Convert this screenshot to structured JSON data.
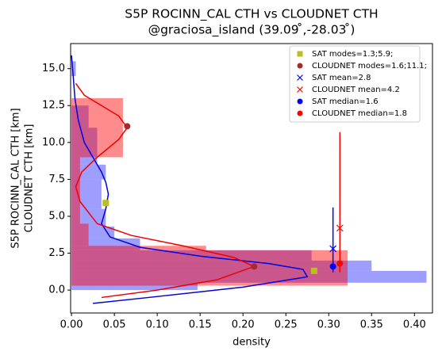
{
  "chart_data": {
    "type": "histogram",
    "title": "S5P ROCINN_CAL CTH vs CLOUDNET CTH",
    "subtitle": "@graciosa_island (39.09 ̊,-28.03 ̊)",
    "ylabel": [
      "S5P ROCINN_CAL CTH [km]",
      "CLOUDNET CTH [km]"
    ],
    "xlabel": "density",
    "xlim": [
      -0.001,
      0.421
    ],
    "ylim": [
      -1.55,
      16.7
    ],
    "xticks": [
      {
        "value": 0,
        "label": "0.00"
      },
      {
        "value": 0.05,
        "label": "0.05"
      },
      {
        "value": 0.1,
        "label": "0.10"
      },
      {
        "value": 0.15,
        "label": "0.15"
      },
      {
        "value": 0.2,
        "label": "0.20"
      },
      {
        "value": 0.25,
        "label": "0.25"
      },
      {
        "value": 0.3,
        "label": "0.30"
      },
      {
        "value": 0.35,
        "label": "0.35"
      },
      {
        "value": 0.4,
        "label": "0.40"
      }
    ],
    "yticks": [
      {
        "value": 0,
        "label": "0.0"
      },
      2.5,
      {
        "value": 5,
        "label": "5.0"
      },
      7.5,
      {
        "value": 10,
        "label": "10.0"
      },
      12.5,
      {
        "value": 15,
        "label": "15.0"
      }
    ],
    "histograms": [
      {
        "color": "rgba(0,0,255,0.38)",
        "bins": [
          0.0,
          0.5,
          1.3,
          2.0,
          2.7,
          3.5,
          4.3,
          5.5,
          7.5,
          8.5,
          11.0,
          12.5,
          14.5,
          15.5
        ],
        "values": [
          0.147,
          0.414,
          0.35,
          0.28,
          0.08,
          0.05,
          0.04,
          0.035,
          0.04,
          0.03,
          0.02,
          0,
          0.005
        ]
      },
      {
        "color": "rgba(255,0,0,0.45)",
        "bins": [
          0.3,
          2.7,
          3.0,
          4.5,
          9.0,
          13.0
        ],
        "values": [
          0.322,
          0.157,
          0.02,
          0.01,
          0.06
        ]
      }
    ],
    "curves": [
      {
        "color": "#0000dd",
        "density": [
          0.025,
          0.09,
          0.2,
          0.275,
          0.27,
          0.23,
          0.15,
          0.08,
          0.045,
          0.035,
          0.04,
          0.043,
          0.04,
          0.035,
          0.025,
          0.015,
          0.008,
          0.004,
          0.002,
          0.0
        ],
        "height": [
          -0.9,
          -0.5,
          0.2,
          0.9,
          1.4,
          1.8,
          2.3,
          2.9,
          3.6,
          4.5,
          5.5,
          6.5,
          7.3,
          8.0,
          9.0,
          10.0,
          11.5,
          13.0,
          14.5,
          15.9
        ]
      },
      {
        "color": "#ee0000",
        "density": [
          0.035,
          0.1,
          0.17,
          0.213,
          0.19,
          0.13,
          0.07,
          0.03,
          0.01,
          0.005,
          0.012,
          0.03,
          0.055,
          0.065,
          0.055,
          0.035,
          0.015,
          0.005
        ],
        "height": [
          -0.5,
          0.0,
          0.7,
          1.6,
          2.2,
          3.0,
          3.7,
          4.5,
          6.0,
          7.0,
          8.0,
          9.0,
          10.2,
          11.0,
          11.8,
          12.5,
          13.2,
          14.0
        ]
      }
    ],
    "markers": [
      {
        "name": "SAT modes=1.3;5.9;",
        "color": "#bcbd22",
        "marker": "square",
        "density": [
          0.283,
          0.04
        ],
        "height": [
          1.3,
          5.9
        ]
      },
      {
        "name": "CLOUDNET modes=1.6;11.1;",
        "color": "#a52a2a",
        "marker": "circle",
        "density": [
          0.213,
          0.065
        ],
        "height": [
          1.6,
          11.1
        ]
      },
      {
        "name": "SAT mean=2.8",
        "color": "#0000ff",
        "marker": "x",
        "density": [
          0.305
        ],
        "height": [
          2.8
        ]
      },
      {
        "name": "CLOUDNET mean=4.2",
        "color": "#ff0000",
        "marker": "x",
        "density": [
          0.313
        ],
        "height": [
          4.2
        ]
      },
      {
        "name": "SAT median=1.6",
        "color": "#0000ff",
        "marker": "circle",
        "density": [
          0.305
        ],
        "height": [
          1.6
        ],
        "range": [
          [
            1.2,
            5.6
          ]
        ]
      },
      {
        "name": "CLOUDNET median=1.8",
        "color": "#ff0000",
        "marker": "circle",
        "density": [
          0.313
        ],
        "height": [
          1.8
        ],
        "range": [
          [
            1.2,
            10.7
          ]
        ]
      }
    ],
    "legend": "upper right"
  }
}
